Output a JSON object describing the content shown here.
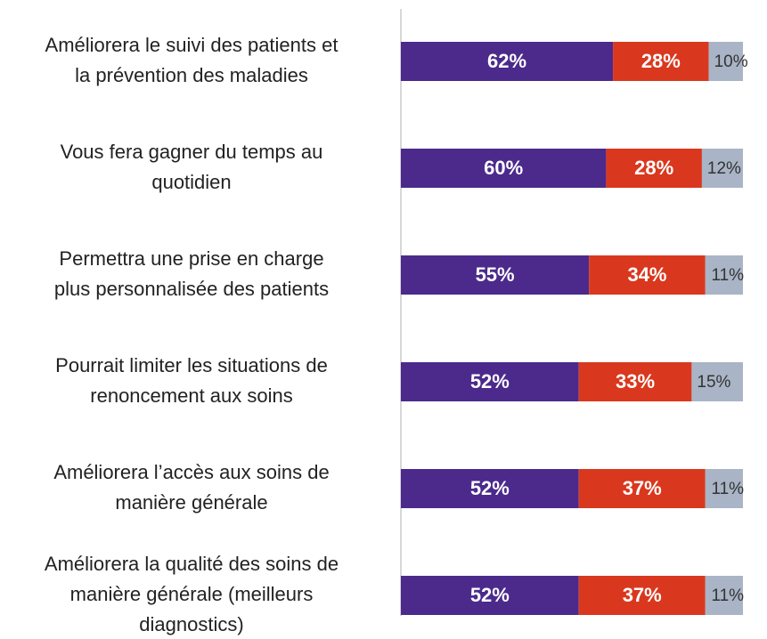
{
  "chart_data": {
    "type": "stacked-barh",
    "categories": [
      [
        "Améliorera le suivi des patients et",
        "la prévention des maladies"
      ],
      [
        "Vous fera gagner du temps au",
        "quotidien"
      ],
      [
        "Permettra une prise en charge",
        "plus personnalisée des patients"
      ],
      [
        "Pourrait limiter les situations de",
        "renoncement aux soins"
      ],
      [
        "Améliorera l’accès aux soins de",
        "manière générale"
      ],
      [
        "Améliorera la qualité des soins de",
        "manière générale (meilleurs",
        "diagnostics)"
      ]
    ],
    "series": [
      {
        "color": "#4b2a8c",
        "values": [
          62,
          60,
          55,
          52,
          52,
          52
        ],
        "value_labels": [
          "62%",
          "60%",
          "55%",
          "52%",
          "52%",
          "52%"
        ]
      },
      {
        "color": "#d9381e",
        "values": [
          28,
          28,
          34,
          33,
          37,
          37
        ],
        "value_labels": [
          "28%",
          "28%",
          "34%",
          "33%",
          "37%",
          "37%"
        ]
      },
      {
        "color": "#a9b4c6",
        "values": [
          10,
          12,
          11,
          15,
          11,
          11
        ],
        "value_labels": [
          "10%",
          "12%",
          "11%",
          "15%",
          "11%",
          "11%"
        ]
      }
    ],
    "xlim": [
      0,
      100
    ]
  }
}
